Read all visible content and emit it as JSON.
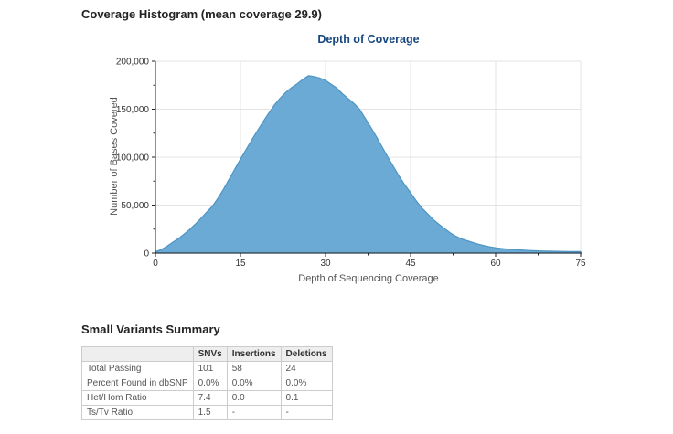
{
  "header": {
    "title": "Coverage Histogram (mean coverage 29.9)"
  },
  "chart_data": {
    "type": "area",
    "title": "Depth of Coverage",
    "xlabel": "Depth of Sequencing Coverage",
    "ylabel": "Number of Bases Covered",
    "xlim": [
      0,
      75
    ],
    "ylim": [
      0,
      200000
    ],
    "x_ticks": [
      0,
      15,
      30,
      45,
      60,
      75
    ],
    "y_ticks": [
      0,
      50000,
      100000,
      150000,
      200000
    ],
    "grid": true,
    "legend_position": "none",
    "series": [
      {
        "name": "Number of Bases Covered",
        "x": [
          0,
          1,
          2,
          3,
          4,
          5,
          6,
          7,
          8,
          9,
          10,
          11,
          12,
          13,
          14,
          15,
          16,
          17,
          18,
          19,
          20,
          21,
          22,
          23,
          24,
          25,
          26,
          27,
          28,
          29,
          30,
          31,
          32,
          33,
          34,
          35,
          36,
          37,
          38,
          39,
          40,
          41,
          42,
          43,
          44,
          45,
          46,
          47,
          48,
          49,
          50,
          51,
          52,
          53,
          54,
          55,
          56,
          57,
          58,
          59,
          60,
          61,
          62,
          63,
          64,
          65,
          66,
          67,
          68,
          69,
          70,
          71,
          72,
          73,
          74,
          75
        ],
        "y": [
          1500,
          3500,
          7000,
          11000,
          15000,
          19500,
          24500,
          30000,
          36000,
          42500,
          48500,
          57000,
          66500,
          77000,
          87500,
          98000,
          108000,
          118000,
          127500,
          137000,
          146000,
          154500,
          161500,
          167500,
          172500,
          176500,
          181000,
          185000,
          184000,
          182500,
          180000,
          176000,
          172000,
          166000,
          161000,
          156000,
          150000,
          140500,
          131000,
          121000,
          110500,
          100000,
          90000,
          80000,
          71000,
          63000,
          54500,
          47000,
          41000,
          35000,
          30000,
          25500,
          21000,
          17500,
          14800,
          13000,
          11000,
          9200,
          7800,
          6500,
          5500,
          4800,
          4200,
          3700,
          3300,
          3000,
          2700,
          2400,
          2200,
          2000,
          1900,
          1800,
          1700,
          1600,
          1550,
          1500
        ]
      }
    ],
    "colors": {
      "fill": "#6aaad5",
      "stroke": "#4d94c4",
      "title": "#17477e",
      "grid": "#e3e3e3",
      "axis": "#222222",
      "tick_label": "#333333"
    }
  },
  "variants_table": {
    "title": "Small Variants Summary",
    "columns": [
      "",
      "SNVs",
      "Insertions",
      "Deletions"
    ],
    "rows": [
      {
        "label": "Total Passing",
        "values": [
          "101",
          "58",
          "24"
        ]
      },
      {
        "label": "Percent Found in dbSNP",
        "values": [
          "0.0%",
          "0.0%",
          "0.0%"
        ]
      },
      {
        "label": "Het/Hom Ratio",
        "values": [
          "7.4",
          "0.0",
          "0.1"
        ]
      },
      {
        "label": "Ts/Tv Ratio",
        "values": [
          "1.5",
          "-",
          "-"
        ]
      }
    ]
  }
}
